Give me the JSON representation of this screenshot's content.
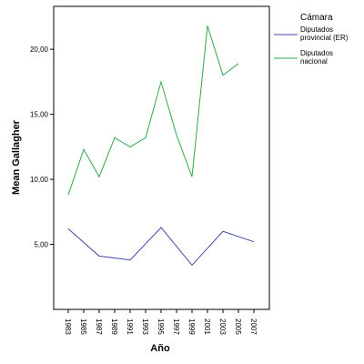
{
  "chart_data": {
    "type": "line",
    "xlabel": "Año",
    "ylabel": "Mean Gallagher",
    "categories": [
      "1983",
      "1985",
      "1987",
      "1989",
      "1991",
      "1993",
      "1995",
      "1997",
      "1999",
      "2001",
      "2003",
      "2005",
      "2007"
    ],
    "yticks": [
      "5,00",
      "10,00",
      "15,00",
      "20,00"
    ],
    "ylim": [
      0,
      23.3
    ],
    "grid": false,
    "legend": {
      "title": "Cámara",
      "placement": "right"
    },
    "series": [
      {
        "name": "Diputados provincial (ER)",
        "color": "#3b47a6",
        "values": [
          6.2,
          null,
          4.1,
          null,
          3.8,
          null,
          6.3,
          null,
          3.4,
          null,
          6.0,
          null,
          5.2
        ]
      },
      {
        "name": "Diputados nacional",
        "color": "#2ea84a",
        "values": [
          8.8,
          12.3,
          10.2,
          13.2,
          12.5,
          13.2,
          17.5,
          13.4,
          10.2,
          21.8,
          18.0,
          18.9,
          null
        ]
      }
    ]
  }
}
